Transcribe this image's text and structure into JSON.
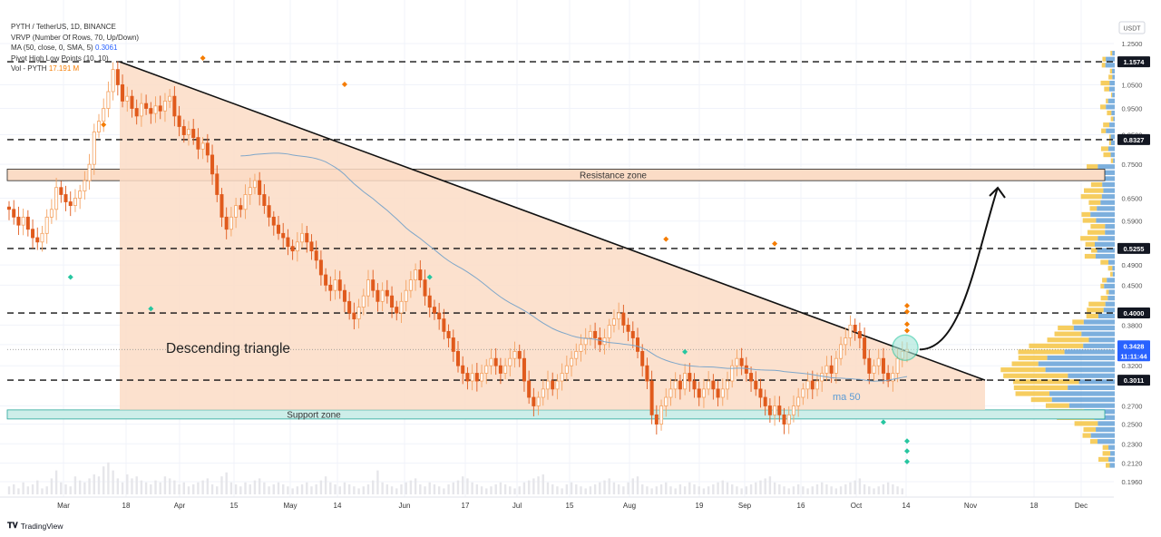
{
  "legend": {
    "symbol": "PYTH / TetherUS, 1D, BINANCE",
    "vrvp": "VRVP (Number Of Rows, 70, Up/Down)",
    "ma_label": "MA (50, close, 0, SMA, 5)",
    "ma_value": "0.3061",
    "pivot": "Pivot High Low Points (10, 10)",
    "vol_label": "Vol - PYTH",
    "vol_value": "17.191 M"
  },
  "watermark": "TradingView",
  "colors": {
    "up": "#26a69a",
    "down": "#f7525f",
    "candle_up": "#f57c00",
    "candle_down": "#f57c00",
    "triangle_fill": "#fbdcc6",
    "support_fill": "#cdeee9",
    "resistance_fill": "#fbdcc6",
    "ma": "#7ea6c9",
    "vp_up": "#f5c443",
    "vp_down": "#5b9bd5",
    "pivot_high": "#f57c00",
    "pivot_low": "#26c6a0",
    "circle": "#26c6a0"
  },
  "chart_data": {
    "type": "candlestick",
    "title": "PYTH / TetherUS, 1D, BINANCE",
    "y_scale": "log",
    "y_unit": "USDT",
    "ylim": [
      0.18,
      1.35
    ],
    "y_ticks": [
      "1.2500",
      "1.0500",
      "0.9500",
      "0.8500",
      "0.7500",
      "0.6500",
      "0.5900",
      "0.4900",
      "0.4500",
      "0.3800",
      "0.3500",
      "0.3200",
      "0.2700",
      "0.2500",
      "0.2300",
      "0.2120",
      "0.1960"
    ],
    "x_ticks": [
      "Mar",
      "18",
      "Apr",
      "15",
      "May",
      "14",
      "Jun",
      "17",
      "Jul",
      "15",
      "Aug",
      "19",
      "Sep",
      "16",
      "Oct",
      "14",
      "Nov",
      "18",
      "Dec"
    ],
    "price_labels": [
      {
        "text": "1.1574",
        "value": 1.1574,
        "style": "dark"
      },
      {
        "text": "0.8327",
        "value": 0.8327,
        "style": "dark"
      },
      {
        "text": "0.5255",
        "value": 0.5255,
        "style": "dark"
      },
      {
        "text": "0.4000",
        "value": 0.4,
        "style": "dark"
      },
      {
        "text": "0.3428",
        "value": 0.3428,
        "style": "blue"
      },
      {
        "text": "11:11:44",
        "value": 0.3428,
        "style": "blue-sub"
      },
      {
        "text": "0.3011",
        "value": 0.3011,
        "style": "dark"
      }
    ],
    "horizontal_levels": [
      1.1574,
      0.8327,
      0.5255,
      0.4,
      0.3011
    ],
    "resistance_zone": {
      "label": "Resistance zone",
      "low": 0.7,
      "high": 0.735
    },
    "support_zone": {
      "label": "Support zone",
      "low": 0.2555,
      "high": 0.2655
    },
    "triangle": {
      "label": "Descending triangle",
      "apex_price": 1.1574,
      "base_price": 0.2655,
      "end_price": 0.3011
    },
    "ma_label": "ma 50",
    "close_series": [
      0.62,
      0.6,
      0.58,
      0.6,
      0.57,
      0.55,
      0.54,
      0.56,
      0.6,
      0.62,
      0.68,
      0.66,
      0.64,
      0.63,
      0.65,
      0.67,
      0.7,
      0.75,
      0.86,
      0.9,
      0.95,
      1.02,
      1.12,
      1.05,
      0.98,
      1.0,
      0.95,
      0.92,
      0.97,
      0.95,
      0.93,
      0.96,
      0.94,
      0.98,
      1.0,
      0.92,
      0.88,
      0.85,
      0.87,
      0.84,
      0.8,
      0.82,
      0.78,
      0.72,
      0.66,
      0.6,
      0.57,
      0.6,
      0.63,
      0.62,
      0.66,
      0.68,
      0.7,
      0.66,
      0.63,
      0.6,
      0.58,
      0.56,
      0.55,
      0.53,
      0.52,
      0.54,
      0.56,
      0.54,
      0.52,
      0.5,
      0.47,
      0.45,
      0.44,
      0.46,
      0.44,
      0.42,
      0.4,
      0.39,
      0.41,
      0.43,
      0.46,
      0.44,
      0.42,
      0.44,
      0.43,
      0.41,
      0.4,
      0.42,
      0.44,
      0.46,
      0.48,
      0.46,
      0.43,
      0.41,
      0.4,
      0.39,
      0.37,
      0.36,
      0.34,
      0.32,
      0.31,
      0.3,
      0.31,
      0.3,
      0.31,
      0.32,
      0.33,
      0.32,
      0.31,
      0.32,
      0.33,
      0.34,
      0.33,
      0.3,
      0.28,
      0.27,
      0.28,
      0.29,
      0.3,
      0.29,
      0.3,
      0.31,
      0.32,
      0.33,
      0.34,
      0.35,
      0.36,
      0.37,
      0.36,
      0.35,
      0.36,
      0.38,
      0.39,
      0.4,
      0.38,
      0.37,
      0.36,
      0.34,
      0.32,
      0.3,
      0.26,
      0.25,
      0.27,
      0.28,
      0.29,
      0.3,
      0.29,
      0.31,
      0.3,
      0.29,
      0.28,
      0.29,
      0.3,
      0.29,
      0.28,
      0.29,
      0.3,
      0.32,
      0.33,
      0.32,
      0.31,
      0.3,
      0.29,
      0.28,
      0.27,
      0.26,
      0.27,
      0.26,
      0.25,
      0.26,
      0.27,
      0.28,
      0.29,
      0.3,
      0.29,
      0.3,
      0.31,
      0.32,
      0.31,
      0.33,
      0.35,
      0.36,
      0.38,
      0.37,
      0.36,
      0.33,
      0.31,
      0.32,
      0.33,
      0.31,
      0.3,
      0.31,
      0.33,
      0.34,
      0.3428
    ],
    "pivot_highs": [
      [
        20,
        0.86
      ],
      [
        41,
        1.14
      ],
      [
        71,
        1.02
      ],
      [
        139,
        0.53
      ],
      [
        162,
        0.52
      ],
      [
        201,
        0.37
      ],
      [
        228,
        0.4
      ],
      [
        276,
        0.36
      ],
      [
        340,
        0.39
      ]
    ],
    "pivot_lows": [
      [
        13,
        0.48
      ],
      [
        30,
        0.42
      ],
      [
        89,
        0.48
      ],
      [
        143,
        0.35
      ],
      [
        185,
        0.26
      ],
      [
        211,
        0.23
      ],
      [
        258,
        0.22
      ],
      [
        307,
        0.24
      ]
    ],
    "volume": [
      4,
      5,
      3,
      6,
      4,
      5,
      7,
      3,
      4,
      8,
      12,
      6,
      5,
      4,
      9,
      7,
      6,
      8,
      10,
      9,
      14,
      16,
      12,
      8,
      6,
      10,
      8,
      9,
      7,
      6,
      5,
      7,
      6,
      9,
      8,
      7,
      5,
      6,
      4,
      5,
      6,
      7,
      8,
      5,
      4,
      9,
      11,
      6,
      5,
      4,
      6,
      5,
      7,
      8,
      6,
      4,
      5,
      6,
      5,
      4,
      3,
      4,
      5,
      6,
      4,
      5,
      7,
      9,
      6,
      5,
      4,
      6,
      5,
      4,
      3,
      4,
      5,
      7,
      12,
      6,
      5,
      4,
      3,
      5,
      6,
      7,
      8,
      5,
      4,
      6,
      5,
      4,
      3,
      5,
      6,
      7,
      9,
      8,
      6,
      5,
      4,
      3,
      4,
      5,
      6,
      5,
      4,
      3,
      4,
      6,
      7,
      8,
      9,
      10,
      6,
      5,
      4,
      3,
      5,
      6,
      5,
      4,
      3,
      4,
      5,
      6,
      7,
      8,
      6,
      5,
      4,
      6,
      8,
      9,
      5,
      4,
      3,
      4,
      5,
      6,
      4,
      3,
      5,
      4,
      6,
      5,
      4,
      3,
      4,
      5,
      6,
      7,
      6,
      5,
      4,
      3,
      4,
      5,
      6,
      7,
      8,
      9,
      6,
      5,
      4,
      3,
      4,
      5,
      4,
      3,
      4,
      5,
      6,
      5,
      4,
      3,
      4,
      5,
      6,
      7,
      8,
      5,
      4,
      3,
      4,
      5,
      6,
      5,
      4,
      3
    ]
  }
}
